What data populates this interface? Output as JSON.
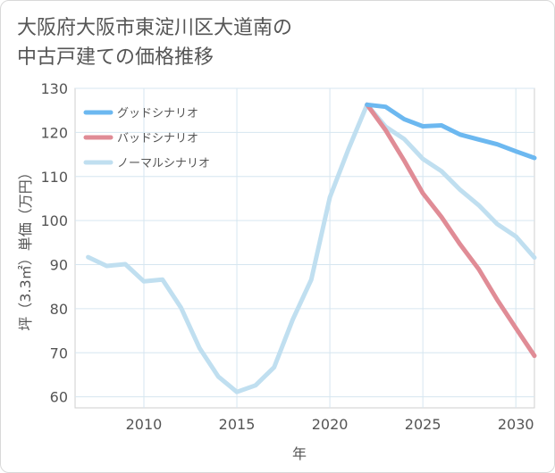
{
  "title_lines": [
    "大阪府大阪市東淀川区大道南の",
    "中古戸建ての価格推移"
  ],
  "chart_data": {
    "type": "line",
    "title": "大阪府大阪市東淀川区大道南の中古戸建ての価格推移",
    "xlabel": "年",
    "ylabel": "坪（3.3㎡）単価（万円）",
    "xlim": [
      2006.3,
      2031
    ],
    "ylim": [
      57.5,
      130
    ],
    "x_ticks": [
      2010,
      2015,
      2020,
      2025,
      2030
    ],
    "y_ticks": [
      60,
      70,
      80,
      90,
      100,
      110,
      120,
      130
    ],
    "grid": true,
    "legend_position": "top-left",
    "series": [
      {
        "name": "グッドシナリオ",
        "color": "#6cb8f0",
        "x": [
          2022,
          2023,
          2024,
          2025,
          2026,
          2027,
          2028,
          2029,
          2030,
          2031
        ],
        "values": [
          126.3,
          125.8,
          123.0,
          121.4,
          121.6,
          119.5,
          118.4,
          117.3,
          115.7,
          114.2
        ]
      },
      {
        "name": "バッドシナリオ",
        "color": "#e08c96",
        "x": [
          2022,
          2023,
          2024,
          2025,
          2026,
          2027,
          2028,
          2029,
          2030,
          2031
        ],
        "values": [
          126.3,
          120.5,
          113.6,
          106.2,
          100.8,
          94.6,
          89.0,
          82.0,
          75.6,
          69.3
        ]
      },
      {
        "name": "ノーマルシナリオ",
        "color": "#c0dff0",
        "x": [
          2007,
          2008,
          2009,
          2010,
          2011,
          2012,
          2013,
          2014,
          2015,
          2016,
          2017,
          2018,
          2019,
          2020,
          2021,
          2022,
          2023,
          2024,
          2025,
          2026,
          2027,
          2028,
          2029,
          2030,
          2031
        ],
        "values": [
          91.7,
          89.7,
          90.1,
          86.2,
          86.6,
          80.2,
          71.0,
          64.6,
          61.1,
          62.6,
          66.7,
          77.5,
          86.6,
          105.3,
          116.2,
          126.3,
          121.3,
          118.5,
          114.0,
          111.2,
          107.0,
          103.5,
          99.2,
          96.4,
          91.6
        ]
      }
    ]
  }
}
